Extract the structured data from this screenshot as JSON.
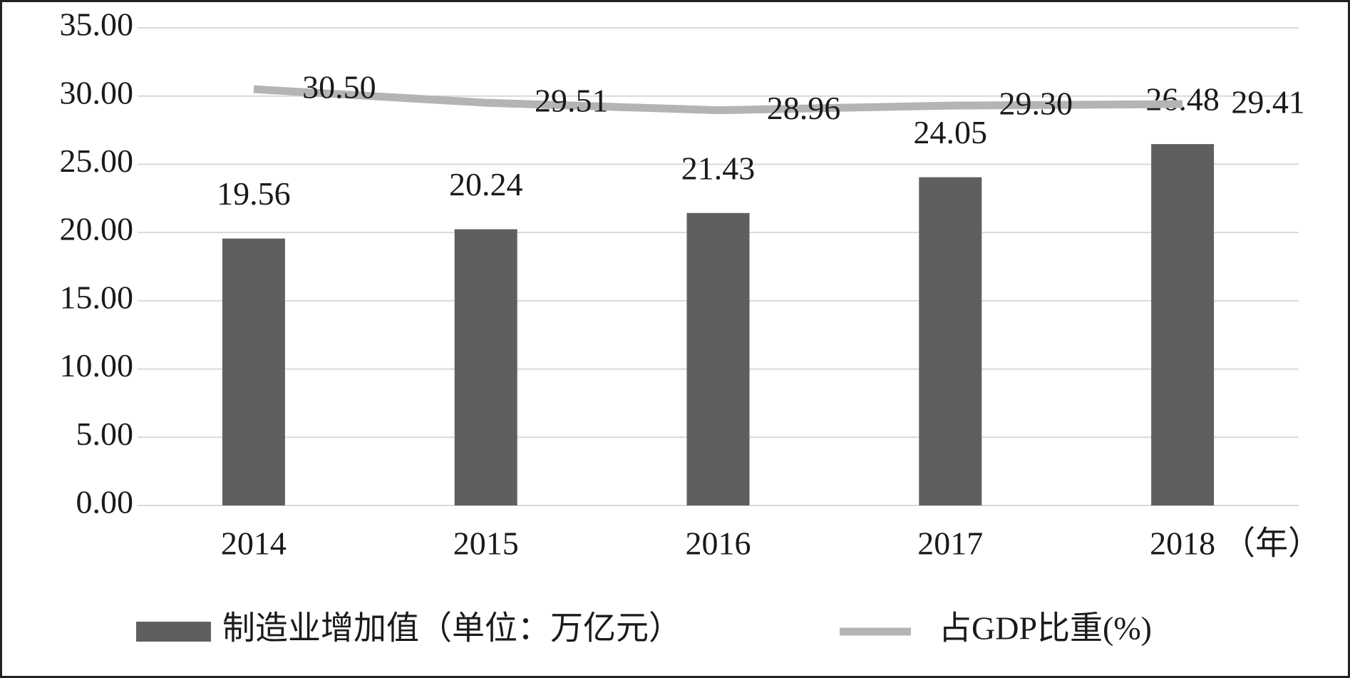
{
  "chart_data": {
    "type": "combo",
    "categories": [
      "2014",
      "2015",
      "2016",
      "2017",
      "2018"
    ],
    "x_label": "（年）",
    "series": [
      {
        "name": "制造业增加值（单位：万亿元）",
        "type": "bar",
        "color": "#5f5f5f",
        "values": [
          19.56,
          20.24,
          21.43,
          24.05,
          26.48
        ]
      },
      {
        "name": "占GDP比重(%)",
        "type": "line",
        "color": "#b4b4b4",
        "values": [
          30.5,
          29.51,
          28.96,
          29.3,
          29.41
        ],
        "value_labels": [
          "30.50",
          "29.51",
          "28.96",
          "29.30",
          "29.41"
        ]
      }
    ],
    "ylim": [
      0,
      35
    ],
    "yticks": [
      {
        "value": 0,
        "label": "0.00"
      },
      {
        "value": 5,
        "label": "5.00"
      },
      {
        "value": 10,
        "label": "10.00"
      },
      {
        "value": 15,
        "label": "15.00"
      },
      {
        "value": 20,
        "label": "20.00"
      },
      {
        "value": 25,
        "label": "25.00"
      },
      {
        "value": 30,
        "label": "30.00"
      },
      {
        "value": 35,
        "label": "35.00"
      }
    ],
    "grid": true,
    "legend": "bottom"
  }
}
